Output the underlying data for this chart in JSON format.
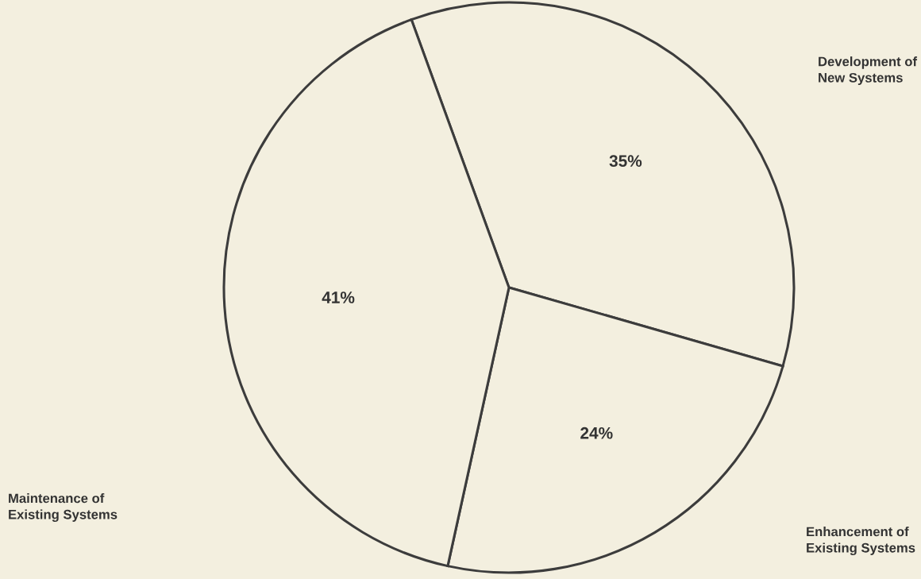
{
  "chart_data": {
    "type": "pie",
    "categories": [
      "Development of\nNew Systems",
      "Enhancement of\nExisting Systems",
      "Maintenance of\nExisting Systems"
    ],
    "values": [
      35,
      24,
      41
    ],
    "value_labels": [
      "35%",
      "24%",
      "41%"
    ],
    "colors": [
      "#f3efdf",
      "#f3efdf",
      "#f3efdf"
    ]
  }
}
